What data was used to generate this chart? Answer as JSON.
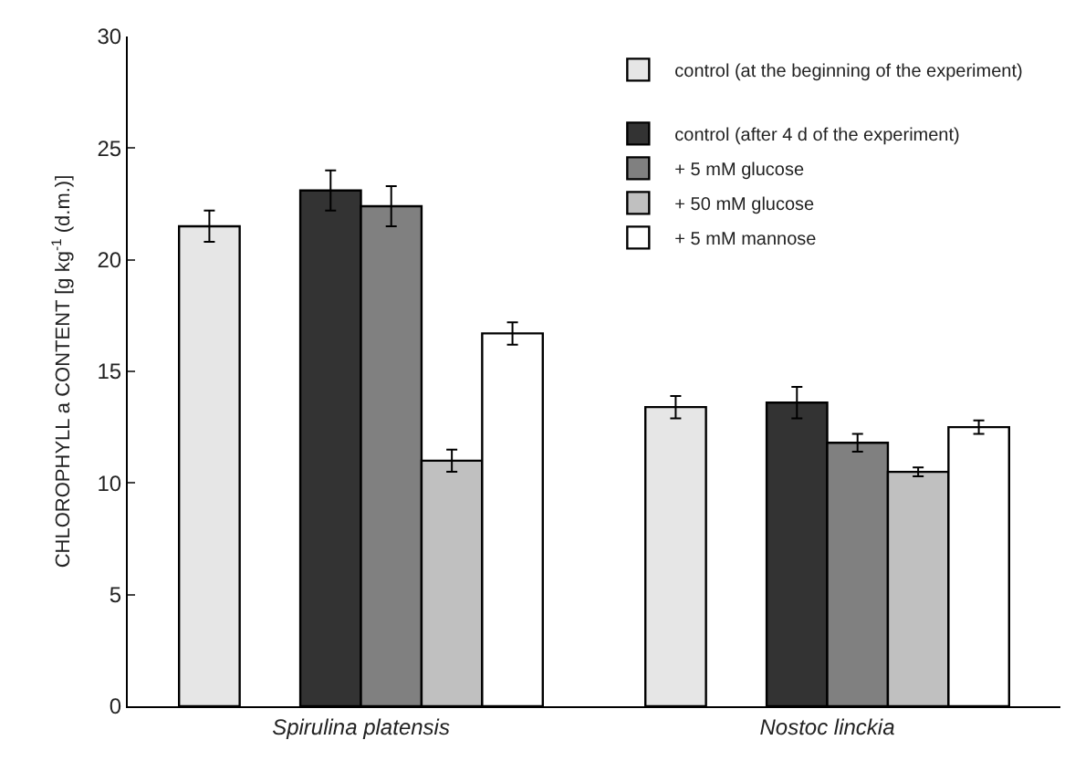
{
  "chart_data": {
    "type": "bar",
    "ylabel": "CHLOROPHYLL a CONTENT [g kg$^{-1}$ (d.m.)]",
    "categories": [
      "Spirulina platensis",
      "Nostoc linckia"
    ],
    "series": [
      {
        "name": "control (at the beginning of the experiment)",
        "color": "#e6e6e6",
        "values": [
          21.5,
          13.4
        ],
        "errors": [
          0.7,
          0.5
        ]
      },
      {
        "name": "control (after 4 d of the experiment)",
        "color": "#333333",
        "values": [
          23.1,
          13.6
        ],
        "errors": [
          0.9,
          0.7
        ]
      },
      {
        "name": "+ 5 mM glucose",
        "color": "#808080",
        "values": [
          22.4,
          11.8
        ],
        "errors": [
          0.9,
          0.4
        ]
      },
      {
        "name": "+ 50 mM glucose",
        "color": "#c0c0c0",
        "values": [
          11.0,
          10.5
        ],
        "errors": [
          0.5,
          0.2
        ]
      },
      {
        "name": "+ 5 mM mannose",
        "color": "#ffffff",
        "values": [
          16.7,
          12.5
        ],
        "errors": [
          0.5,
          0.3
        ]
      }
    ],
    "ylim": [
      0,
      30
    ],
    "yticks": [
      0,
      5,
      10,
      15,
      20,
      25,
      30
    ],
    "grid": false,
    "legend": "top right"
  }
}
